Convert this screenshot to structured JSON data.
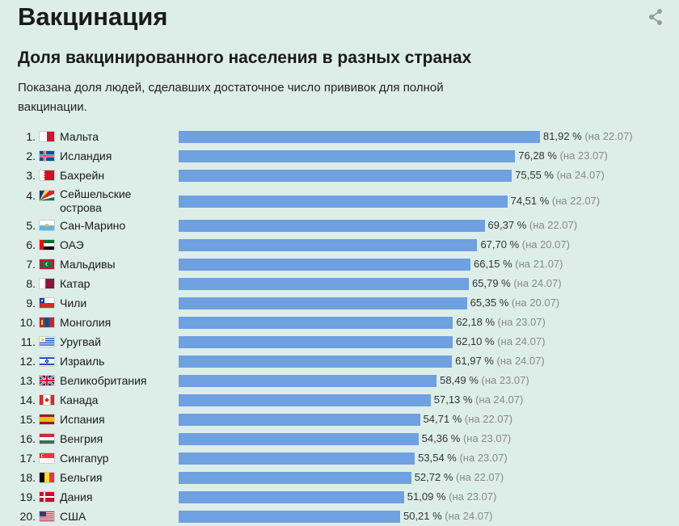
{
  "page": {
    "title": "Вакцинация",
    "share_icon": "share-icon"
  },
  "chart_data": {
    "type": "bar",
    "orientation": "horizontal",
    "title": "Доля вакцинированного населения в разных странах",
    "subtitle": "Показана доля людей, сделавших достаточное число прививок для полной вакцинации.",
    "bar_color": "#6fa0e0",
    "xlim": [
      0,
      100
    ],
    "grid": false,
    "rows": [
      {
        "rank": "1.",
        "country": "Мальта",
        "flag": "malta",
        "value": 81.92,
        "value_label": "81,92 %",
        "date_label": "(на 22.07)"
      },
      {
        "rank": "2.",
        "country": "Исландия",
        "flag": "iceland",
        "value": 76.28,
        "value_label": "76,28 %",
        "date_label": "(на 23.07)"
      },
      {
        "rank": "3.",
        "country": "Бахрейн",
        "flag": "bahrain",
        "value": 75.55,
        "value_label": "75,55 %",
        "date_label": "(на 24.07)"
      },
      {
        "rank": "4.",
        "country": "Сейшельские острова",
        "flag": "seychelles",
        "value": 74.51,
        "value_label": "74,51 %",
        "date_label": "(на 22.07)"
      },
      {
        "rank": "5.",
        "country": "Сан-Марино",
        "flag": "san-marino",
        "value": 69.37,
        "value_label": "69,37 %",
        "date_label": "(на 22.07)"
      },
      {
        "rank": "6.",
        "country": "ОАЭ",
        "flag": "uae",
        "value": 67.7,
        "value_label": "67,70 %",
        "date_label": "(на 20.07)"
      },
      {
        "rank": "7.",
        "country": "Мальдивы",
        "flag": "maldives",
        "value": 66.15,
        "value_label": "66,15 %",
        "date_label": "(на 21.07)"
      },
      {
        "rank": "8.",
        "country": "Катар",
        "flag": "qatar",
        "value": 65.79,
        "value_label": "65,79 %",
        "date_label": "(на 24.07)"
      },
      {
        "rank": "9.",
        "country": "Чили",
        "flag": "chile",
        "value": 65.35,
        "value_label": "65,35 %",
        "date_label": "(на 20.07)"
      },
      {
        "rank": "10.",
        "country": "Монголия",
        "flag": "mongolia",
        "value": 62.18,
        "value_label": "62,18 %",
        "date_label": "(на 23.07)"
      },
      {
        "rank": "11.",
        "country": "Уругвай",
        "flag": "uruguay",
        "value": 62.1,
        "value_label": "62,10 %",
        "date_label": "(на 24.07)"
      },
      {
        "rank": "12.",
        "country": "Израиль",
        "flag": "israel",
        "value": 61.97,
        "value_label": "61,97 %",
        "date_label": "(на 24.07)"
      },
      {
        "rank": "13.",
        "country": "Великобритания",
        "flag": "uk",
        "value": 58.49,
        "value_label": "58,49 %",
        "date_label": "(на 23.07)"
      },
      {
        "rank": "14.",
        "country": "Канада",
        "flag": "canada",
        "value": 57.13,
        "value_label": "57,13 %",
        "date_label": "(на 24.07)"
      },
      {
        "rank": "15.",
        "country": "Испания",
        "flag": "spain",
        "value": 54.71,
        "value_label": "54,71 %",
        "date_label": "(на 22.07)"
      },
      {
        "rank": "16.",
        "country": "Венгрия",
        "flag": "hungary",
        "value": 54.36,
        "value_label": "54,36 %",
        "date_label": "(на 23.07)"
      },
      {
        "rank": "17.",
        "country": "Сингапур",
        "flag": "singapore",
        "value": 53.54,
        "value_label": "53,54 %",
        "date_label": "(на 23.07)"
      },
      {
        "rank": "18.",
        "country": "Бельгия",
        "flag": "belgium",
        "value": 52.72,
        "value_label": "52,72 %",
        "date_label": "(на 22.07)"
      },
      {
        "rank": "19.",
        "country": "Дания",
        "flag": "denmark",
        "value": 51.09,
        "value_label": "51,09 %",
        "date_label": "(на 23.07)"
      },
      {
        "rank": "20.",
        "country": "США",
        "flag": "usa",
        "value": 50.21,
        "value_label": "50,21 %",
        "date_label": "(на 24.07)"
      }
    ]
  }
}
